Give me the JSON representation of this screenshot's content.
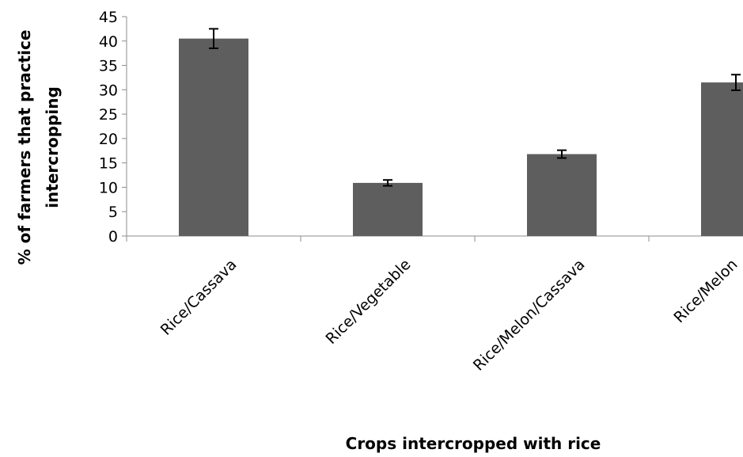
{
  "chart_data": {
    "type": "bar",
    "title": "",
    "xlabel": "Crops intercropped with rice",
    "ylabel_lines": [
      "% of farmers that practice",
      "intercropping"
    ],
    "categories": [
      "Rice/Cassava",
      "Rice/Vegetable",
      "Rice/Melon/Cassava",
      "Rice/Melon"
    ],
    "values": [
      40.5,
      10.9,
      16.8,
      31.5
    ],
    "error": [
      2.0,
      0.6,
      0.8,
      1.6
    ],
    "ylim": [
      0,
      45
    ],
    "yticks": [
      "0",
      "5",
      "10",
      "15",
      "20",
      "25",
      "30",
      "35",
      "40",
      "45"
    ],
    "grid": false,
    "legend": "none",
    "bar_color": "#5e5e5e"
  }
}
